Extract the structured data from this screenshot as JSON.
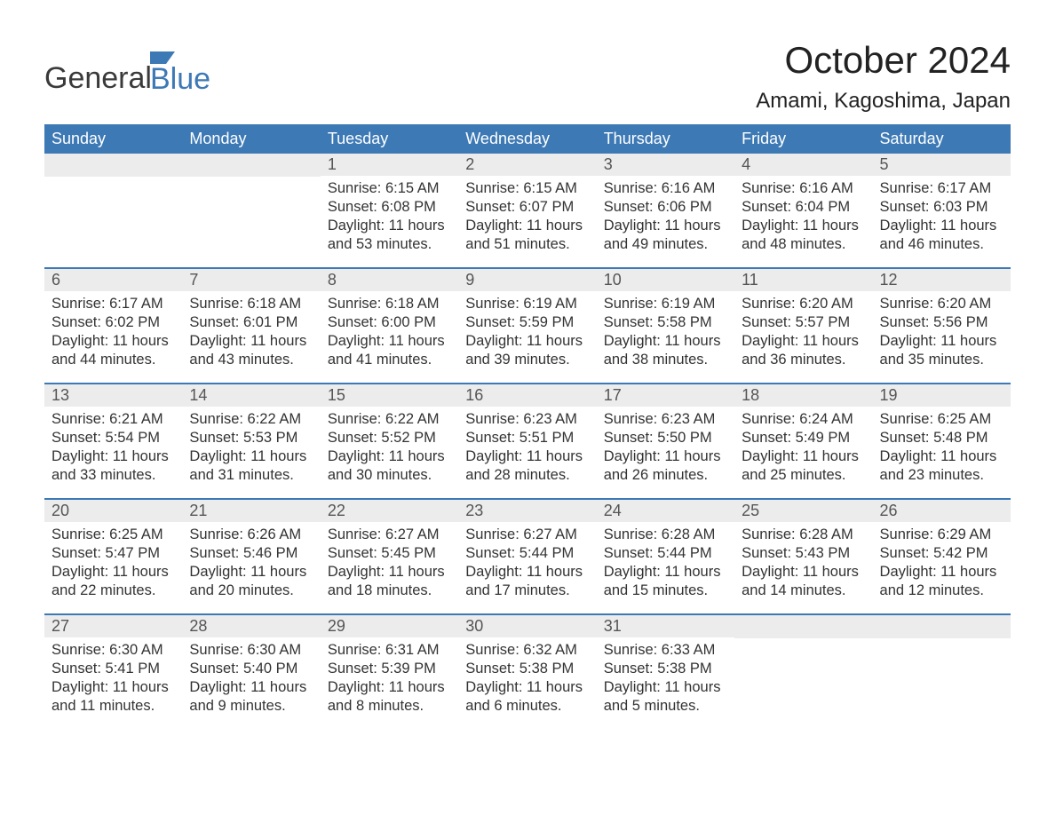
{
  "brand": {
    "word1": "General",
    "word2": "Blue",
    "word1_color": "#3a3a3a",
    "word2_color": "#3d79b5",
    "flag_color": "#3d79b5"
  },
  "title": {
    "month": "October 2024",
    "location": "Amami, Kagoshima, Japan"
  },
  "layout": {
    "header_bg": "#3d79b5",
    "header_fg": "#ffffff",
    "daynum_bg": "#ececec",
    "rule_color": "#3d79b5",
    "body_fg": "#333333",
    "page_bg": "#ffffff",
    "header_fontsize": 18,
    "daynum_fontsize": 18,
    "body_fontsize": 16.5,
    "title_fontsize": 42,
    "location_fontsize": 24
  },
  "weekdays": [
    "Sunday",
    "Monday",
    "Tuesday",
    "Wednesday",
    "Thursday",
    "Friday",
    "Saturday"
  ],
  "weeks": [
    [
      null,
      null,
      {
        "n": "1",
        "sunrise": "Sunrise: 6:15 AM",
        "sunset": "Sunset: 6:08 PM",
        "day1": "Daylight: 11 hours",
        "day2": "and 53 minutes."
      },
      {
        "n": "2",
        "sunrise": "Sunrise: 6:15 AM",
        "sunset": "Sunset: 6:07 PM",
        "day1": "Daylight: 11 hours",
        "day2": "and 51 minutes."
      },
      {
        "n": "3",
        "sunrise": "Sunrise: 6:16 AM",
        "sunset": "Sunset: 6:06 PM",
        "day1": "Daylight: 11 hours",
        "day2": "and 49 minutes."
      },
      {
        "n": "4",
        "sunrise": "Sunrise: 6:16 AM",
        "sunset": "Sunset: 6:04 PM",
        "day1": "Daylight: 11 hours",
        "day2": "and 48 minutes."
      },
      {
        "n": "5",
        "sunrise": "Sunrise: 6:17 AM",
        "sunset": "Sunset: 6:03 PM",
        "day1": "Daylight: 11 hours",
        "day2": "and 46 minutes."
      }
    ],
    [
      {
        "n": "6",
        "sunrise": "Sunrise: 6:17 AM",
        "sunset": "Sunset: 6:02 PM",
        "day1": "Daylight: 11 hours",
        "day2": "and 44 minutes."
      },
      {
        "n": "7",
        "sunrise": "Sunrise: 6:18 AM",
        "sunset": "Sunset: 6:01 PM",
        "day1": "Daylight: 11 hours",
        "day2": "and 43 minutes."
      },
      {
        "n": "8",
        "sunrise": "Sunrise: 6:18 AM",
        "sunset": "Sunset: 6:00 PM",
        "day1": "Daylight: 11 hours",
        "day2": "and 41 minutes."
      },
      {
        "n": "9",
        "sunrise": "Sunrise: 6:19 AM",
        "sunset": "Sunset: 5:59 PM",
        "day1": "Daylight: 11 hours",
        "day2": "and 39 minutes."
      },
      {
        "n": "10",
        "sunrise": "Sunrise: 6:19 AM",
        "sunset": "Sunset: 5:58 PM",
        "day1": "Daylight: 11 hours",
        "day2": "and 38 minutes."
      },
      {
        "n": "11",
        "sunrise": "Sunrise: 6:20 AM",
        "sunset": "Sunset: 5:57 PM",
        "day1": "Daylight: 11 hours",
        "day2": "and 36 minutes."
      },
      {
        "n": "12",
        "sunrise": "Sunrise: 6:20 AM",
        "sunset": "Sunset: 5:56 PM",
        "day1": "Daylight: 11 hours",
        "day2": "and 35 minutes."
      }
    ],
    [
      {
        "n": "13",
        "sunrise": "Sunrise: 6:21 AM",
        "sunset": "Sunset: 5:54 PM",
        "day1": "Daylight: 11 hours",
        "day2": "and 33 minutes."
      },
      {
        "n": "14",
        "sunrise": "Sunrise: 6:22 AM",
        "sunset": "Sunset: 5:53 PM",
        "day1": "Daylight: 11 hours",
        "day2": "and 31 minutes."
      },
      {
        "n": "15",
        "sunrise": "Sunrise: 6:22 AM",
        "sunset": "Sunset: 5:52 PM",
        "day1": "Daylight: 11 hours",
        "day2": "and 30 minutes."
      },
      {
        "n": "16",
        "sunrise": "Sunrise: 6:23 AM",
        "sunset": "Sunset: 5:51 PM",
        "day1": "Daylight: 11 hours",
        "day2": "and 28 minutes."
      },
      {
        "n": "17",
        "sunrise": "Sunrise: 6:23 AM",
        "sunset": "Sunset: 5:50 PM",
        "day1": "Daylight: 11 hours",
        "day2": "and 26 minutes."
      },
      {
        "n": "18",
        "sunrise": "Sunrise: 6:24 AM",
        "sunset": "Sunset: 5:49 PM",
        "day1": "Daylight: 11 hours",
        "day2": "and 25 minutes."
      },
      {
        "n": "19",
        "sunrise": "Sunrise: 6:25 AM",
        "sunset": "Sunset: 5:48 PM",
        "day1": "Daylight: 11 hours",
        "day2": "and 23 minutes."
      }
    ],
    [
      {
        "n": "20",
        "sunrise": "Sunrise: 6:25 AM",
        "sunset": "Sunset: 5:47 PM",
        "day1": "Daylight: 11 hours",
        "day2": "and 22 minutes."
      },
      {
        "n": "21",
        "sunrise": "Sunrise: 6:26 AM",
        "sunset": "Sunset: 5:46 PM",
        "day1": "Daylight: 11 hours",
        "day2": "and 20 minutes."
      },
      {
        "n": "22",
        "sunrise": "Sunrise: 6:27 AM",
        "sunset": "Sunset: 5:45 PM",
        "day1": "Daylight: 11 hours",
        "day2": "and 18 minutes."
      },
      {
        "n": "23",
        "sunrise": "Sunrise: 6:27 AM",
        "sunset": "Sunset: 5:44 PM",
        "day1": "Daylight: 11 hours",
        "day2": "and 17 minutes."
      },
      {
        "n": "24",
        "sunrise": "Sunrise: 6:28 AM",
        "sunset": "Sunset: 5:44 PM",
        "day1": "Daylight: 11 hours",
        "day2": "and 15 minutes."
      },
      {
        "n": "25",
        "sunrise": "Sunrise: 6:28 AM",
        "sunset": "Sunset: 5:43 PM",
        "day1": "Daylight: 11 hours",
        "day2": "and 14 minutes."
      },
      {
        "n": "26",
        "sunrise": "Sunrise: 6:29 AM",
        "sunset": "Sunset: 5:42 PM",
        "day1": "Daylight: 11 hours",
        "day2": "and 12 minutes."
      }
    ],
    [
      {
        "n": "27",
        "sunrise": "Sunrise: 6:30 AM",
        "sunset": "Sunset: 5:41 PM",
        "day1": "Daylight: 11 hours",
        "day2": "and 11 minutes."
      },
      {
        "n": "28",
        "sunrise": "Sunrise: 6:30 AM",
        "sunset": "Sunset: 5:40 PM",
        "day1": "Daylight: 11 hours",
        "day2": "and 9 minutes."
      },
      {
        "n": "29",
        "sunrise": "Sunrise: 6:31 AM",
        "sunset": "Sunset: 5:39 PM",
        "day1": "Daylight: 11 hours",
        "day2": "and 8 minutes."
      },
      {
        "n": "30",
        "sunrise": "Sunrise: 6:32 AM",
        "sunset": "Sunset: 5:38 PM",
        "day1": "Daylight: 11 hours",
        "day2": "and 6 minutes."
      },
      {
        "n": "31",
        "sunrise": "Sunrise: 6:33 AM",
        "sunset": "Sunset: 5:38 PM",
        "day1": "Daylight: 11 hours",
        "day2": "and 5 minutes."
      },
      null,
      null
    ]
  ]
}
